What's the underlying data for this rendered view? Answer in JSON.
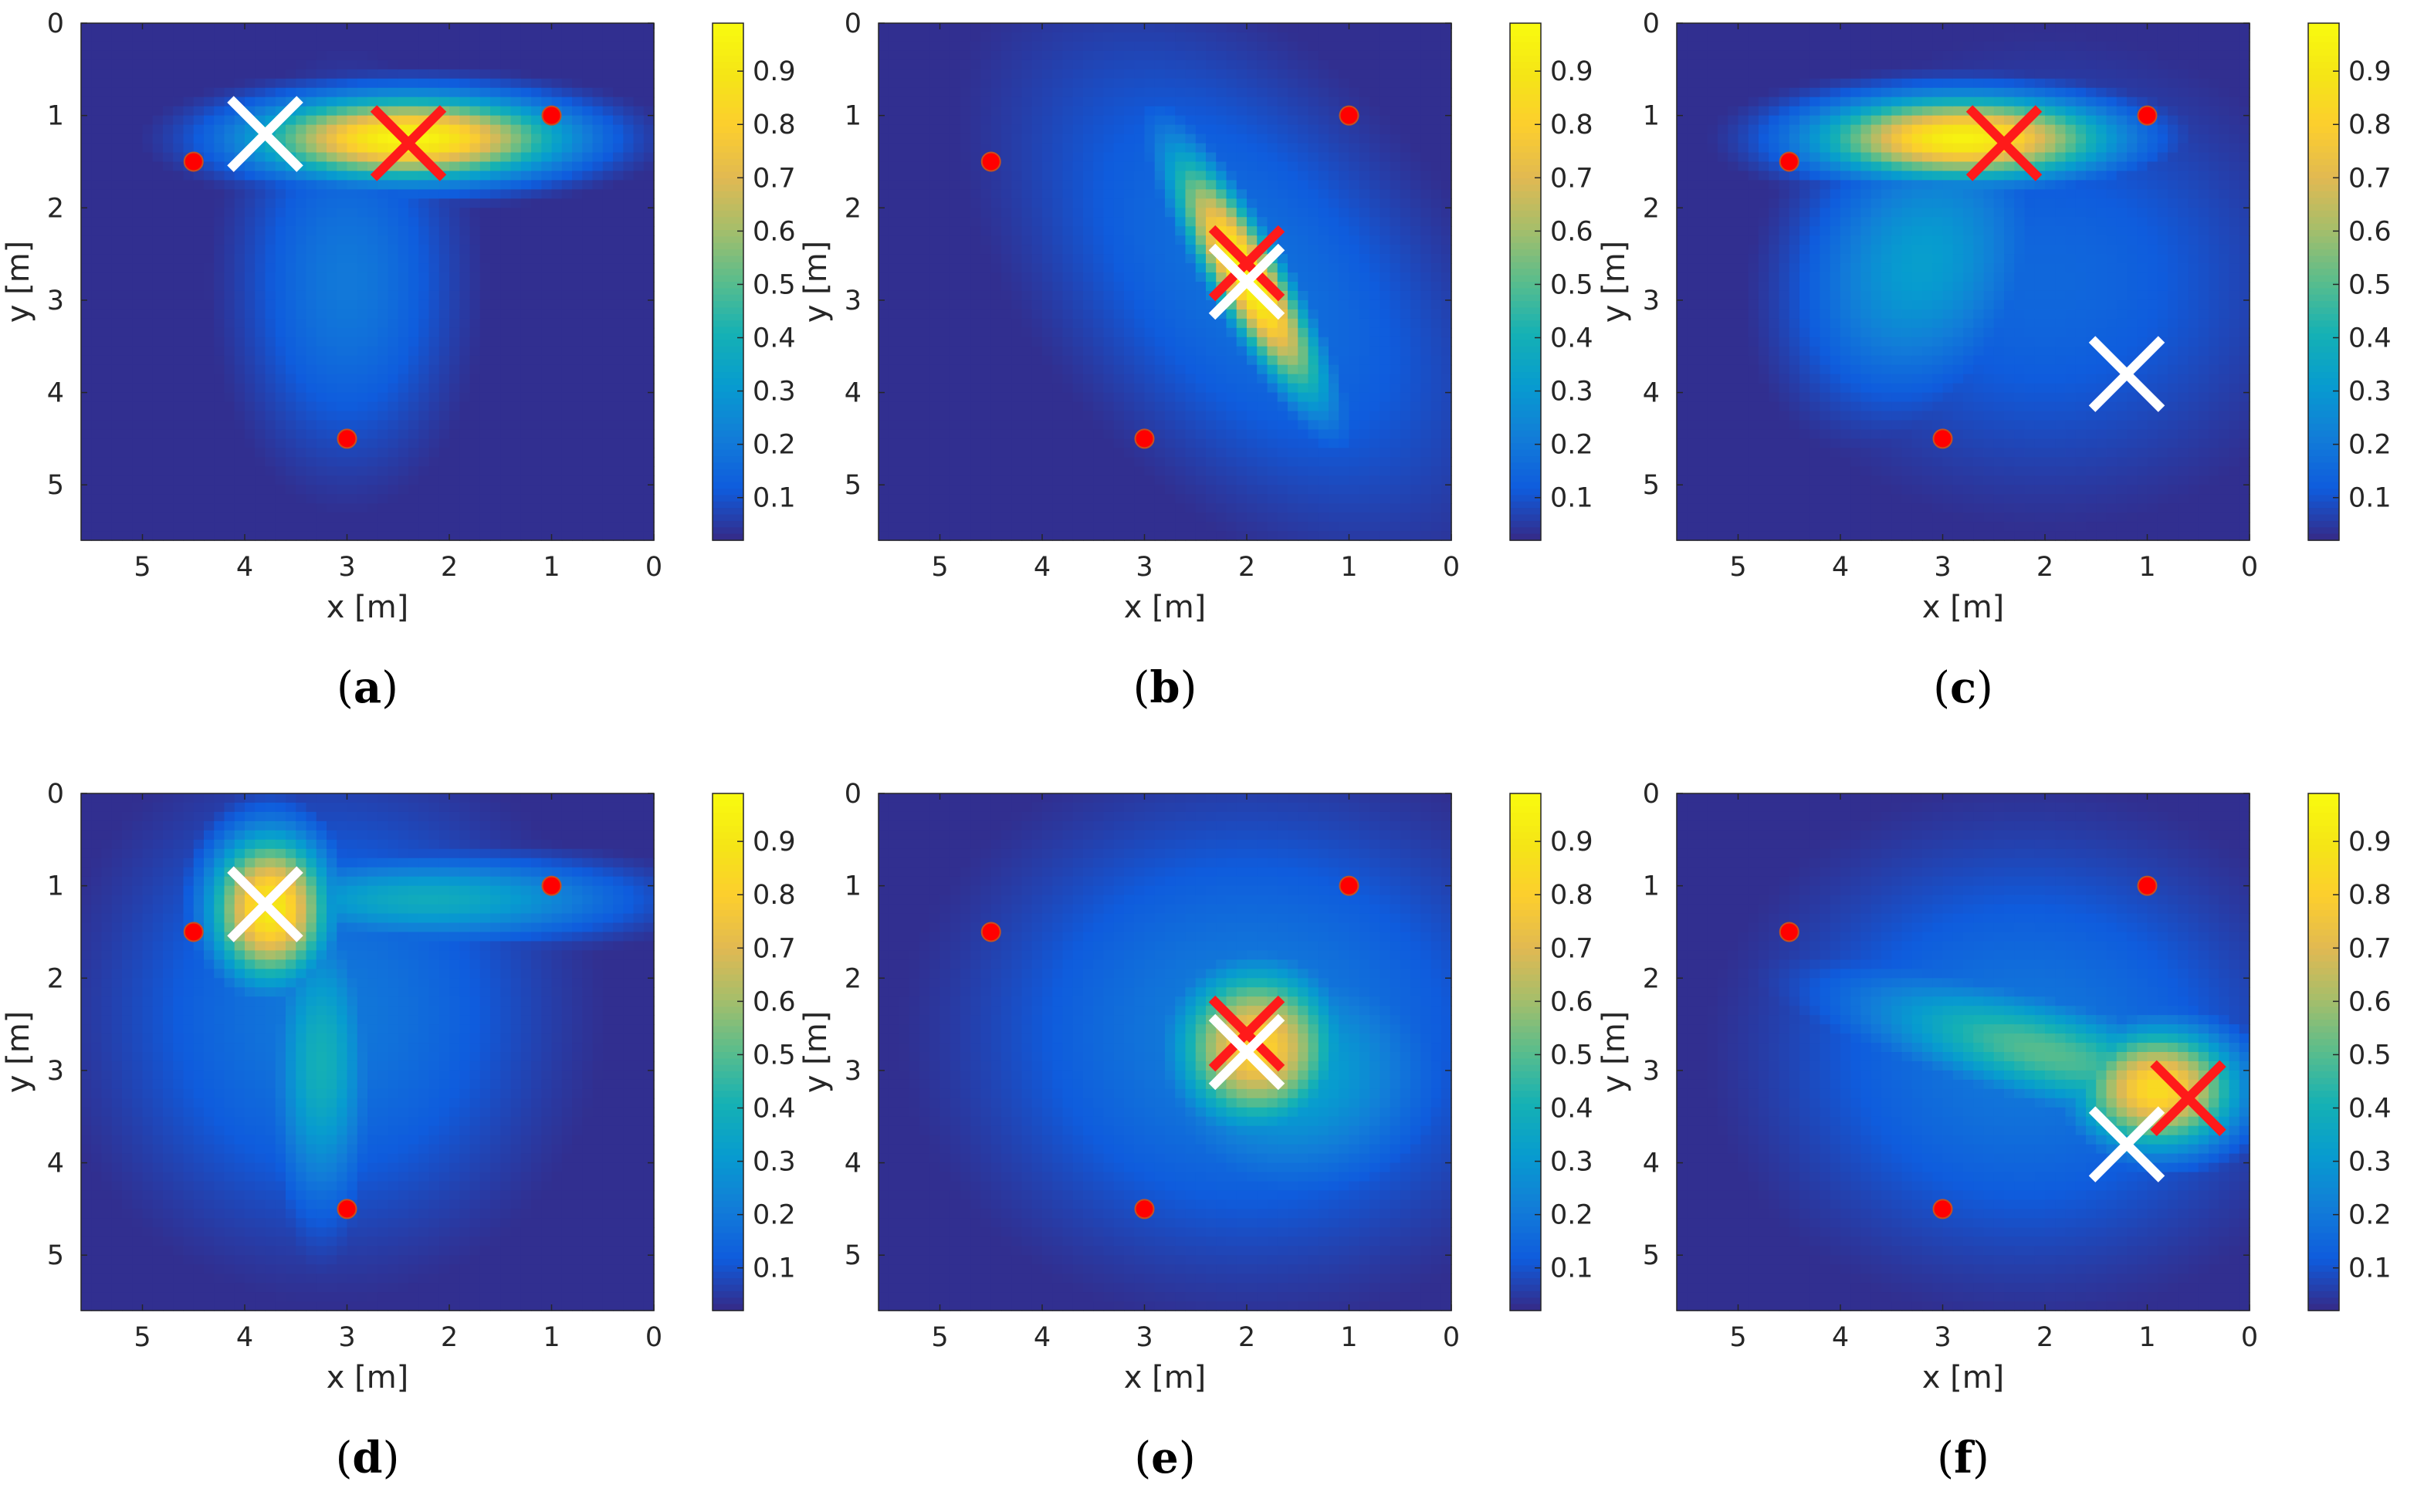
{
  "figure": {
    "colormap": "parula",
    "colors": {
      "anchor": "#ff0000",
      "anchor_edge": "#c8501e",
      "estimate_cross": "#ff1a1a",
      "true_cross": "#ffffff",
      "axis": "#262626"
    }
  },
  "chart_data": [
    {
      "panel": "a",
      "type": "heatmap",
      "caption": "(a)",
      "xlabel": "x [m]",
      "ylabel": "y [m]",
      "xlim": [
        5.6,
        0
      ],
      "ylim": [
        0,
        5.6
      ],
      "xticks": [
        "5",
        "4",
        "3",
        "2",
        "1",
        "0"
      ],
      "yticks": [
        "0",
        "1",
        "2",
        "3",
        "4",
        "5"
      ],
      "colorbar_ticks": [
        "0.1",
        "0.2",
        "0.3",
        "0.4",
        "0.5",
        "0.6",
        "0.7",
        "0.8",
        "0.9"
      ],
      "colorbar_range": [
        0.02,
        0.99
      ],
      "anchors": [
        [
          4.5,
          1.5
        ],
        [
          1.0,
          1.0
        ],
        [
          3.0,
          4.5
        ]
      ],
      "estimate": [
        2.4,
        1.3
      ],
      "true_position": [
        3.8,
        1.2
      ],
      "blobs": [
        {
          "cx": 2.4,
          "cy": 1.25,
          "sx": 1.0,
          "sy": 0.3,
          "rho": 0.0,
          "amp": 0.97
        },
        {
          "cx": 3.0,
          "cy": 2.8,
          "sx": 0.7,
          "sy": 1.3,
          "rho": 0.0,
          "amp": 0.2
        }
      ]
    },
    {
      "panel": "b",
      "type": "heatmap",
      "caption": "(b)",
      "xlabel": "x [m]",
      "ylabel": "y [m]",
      "xlim": [
        5.6,
        0
      ],
      "ylim": [
        0,
        5.6
      ],
      "xticks": [
        "5",
        "4",
        "3",
        "2",
        "1",
        "0"
      ],
      "yticks": [
        "0",
        "1",
        "2",
        "3",
        "4",
        "5"
      ],
      "colorbar_ticks": [
        "0.1",
        "0.2",
        "0.3",
        "0.4",
        "0.5",
        "0.6",
        "0.7",
        "0.8",
        "0.9"
      ],
      "colorbar_range": [
        0.02,
        0.99
      ],
      "anchors": [
        [
          4.5,
          1.5
        ],
        [
          1.0,
          1.0
        ],
        [
          3.0,
          4.5
        ]
      ],
      "estimate": [
        2.0,
        2.6
      ],
      "true_position": [
        2.0,
        2.8
      ],
      "blobs": [
        {
          "cx": 2.0,
          "cy": 2.75,
          "sx": 0.5,
          "sy": 0.9,
          "rho": -0.85,
          "amp": 0.97
        },
        {
          "cx": 2.0,
          "cy": 2.75,
          "sx": 1.5,
          "sy": 1.8,
          "rho": -0.5,
          "amp": 0.18
        }
      ]
    },
    {
      "panel": "c",
      "type": "heatmap",
      "caption": "(c)",
      "xlabel": "x [m]",
      "ylabel": "y [m]",
      "xlim": [
        5.6,
        0
      ],
      "ylim": [
        0,
        5.6
      ],
      "xticks": [
        "5",
        "4",
        "3",
        "2",
        "1",
        "0"
      ],
      "yticks": [
        "0",
        "1",
        "2",
        "3",
        "4",
        "5"
      ],
      "colorbar_ticks": [
        "0.1",
        "0.2",
        "0.3",
        "0.4",
        "0.5",
        "0.6",
        "0.7",
        "0.8",
        "0.9"
      ],
      "colorbar_range": [
        0.02,
        0.99
      ],
      "anchors": [
        [
          4.5,
          1.5
        ],
        [
          1.0,
          1.0
        ],
        [
          3.0,
          4.5
        ]
      ],
      "estimate": [
        2.4,
        1.3
      ],
      "true_position": [
        1.2,
        3.8
      ],
      "blobs": [
        {
          "cx": 2.8,
          "cy": 1.25,
          "sx": 0.95,
          "sy": 0.3,
          "rho": 0.0,
          "amp": 0.95
        },
        {
          "cx": 3.2,
          "cy": 2.6,
          "sx": 0.8,
          "sy": 1.0,
          "rho": 0.2,
          "amp": 0.32
        },
        {
          "cx": 2.0,
          "cy": 2.8,
          "sx": 1.6,
          "sy": 1.5,
          "rho": 0.0,
          "amp": 0.15
        }
      ]
    },
    {
      "panel": "d",
      "type": "heatmap",
      "caption": "(d)",
      "xlabel": "x [m]",
      "ylabel": "y [m]",
      "xlim": [
        5.6,
        0
      ],
      "ylim": [
        0,
        5.6
      ],
      "xticks": [
        "5",
        "4",
        "3",
        "2",
        "1",
        "0"
      ],
      "yticks": [
        "0",
        "1",
        "2",
        "3",
        "4",
        "5"
      ],
      "colorbar_ticks": [
        "0.1",
        "0.2",
        "0.3",
        "0.4",
        "0.5",
        "0.6",
        "0.7",
        "0.8",
        "0.9"
      ],
      "colorbar_range": [
        0.02,
        0.99
      ],
      "anchors": [
        [
          4.5,
          1.5
        ],
        [
          1.0,
          1.0
        ],
        [
          3.0,
          4.5
        ]
      ],
      "estimate": [
        3.8,
        1.2
      ],
      "true_position": [
        3.8,
        1.2
      ],
      "blobs": [
        {
          "cx": 3.75,
          "cy": 1.25,
          "sx": 0.4,
          "sy": 0.55,
          "rho": 0.0,
          "amp": 0.92
        },
        {
          "cx": 2.2,
          "cy": 1.15,
          "sx": 1.3,
          "sy": 0.3,
          "rho": 0.0,
          "amp": 0.38
        },
        {
          "cx": 3.25,
          "cy": 2.9,
          "sx": 0.35,
          "sy": 1.1,
          "rho": 0.0,
          "amp": 0.4
        },
        {
          "cx": 3.2,
          "cy": 2.4,
          "sx": 1.4,
          "sy": 1.6,
          "rho": 0.0,
          "amp": 0.2
        }
      ]
    },
    {
      "panel": "e",
      "type": "heatmap",
      "caption": "(e)",
      "xlabel": "x [m]",
      "ylabel": "y [m]",
      "xlim": [
        5.6,
        0
      ],
      "ylim": [
        0,
        5.6
      ],
      "xticks": [
        "5",
        "4",
        "3",
        "2",
        "1",
        "0"
      ],
      "yticks": [
        "0",
        "1",
        "2",
        "3",
        "4",
        "5"
      ],
      "colorbar_ticks": [
        "0.1",
        "0.2",
        "0.3",
        "0.4",
        "0.5",
        "0.6",
        "0.7",
        "0.8",
        "0.9"
      ],
      "colorbar_range": [
        0.02,
        0.99
      ],
      "anchors": [
        [
          4.5,
          1.5
        ],
        [
          1.0,
          1.0
        ],
        [
          3.0,
          4.5
        ]
      ],
      "estimate": [
        2.0,
        2.6
      ],
      "true_position": [
        2.0,
        2.8
      ],
      "blobs": [
        {
          "cx": 1.9,
          "cy": 2.75,
          "sx": 0.55,
          "sy": 0.6,
          "rho": 0.0,
          "amp": 0.82
        },
        {
          "cx": 1.6,
          "cy": 3.0,
          "sx": 1.0,
          "sy": 0.9,
          "rho": 0.0,
          "amp": 0.35
        },
        {
          "cx": 2.0,
          "cy": 2.6,
          "sx": 1.7,
          "sy": 1.6,
          "rho": 0.0,
          "amp": 0.22
        }
      ]
    },
    {
      "panel": "f",
      "type": "heatmap",
      "caption": "(f)",
      "xlabel": "x [m]",
      "ylabel": "y [m]",
      "xlim": [
        5.6,
        0
      ],
      "ylim": [
        0,
        5.6
      ],
      "xticks": [
        "5",
        "4",
        "3",
        "2",
        "1",
        "0"
      ],
      "yticks": [
        "0",
        "1",
        "2",
        "3",
        "4",
        "5"
      ],
      "colorbar_ticks": [
        "0.1",
        "0.2",
        "0.3",
        "0.4",
        "0.5",
        "0.6",
        "0.7",
        "0.8",
        "0.9"
      ],
      "colorbar_range": [
        0.02,
        0.99
      ],
      "anchors": [
        [
          4.5,
          1.5
        ],
        [
          1.0,
          1.0
        ],
        [
          3.0,
          4.5
        ]
      ],
      "estimate": [
        0.6,
        3.3
      ],
      "true_position": [
        1.2,
        3.8
      ],
      "blobs": [
        {
          "cx": 0.9,
          "cy": 3.2,
          "sx": 0.55,
          "sy": 0.45,
          "rho": 0.0,
          "amp": 0.85
        },
        {
          "cx": 2.0,
          "cy": 2.8,
          "sx": 1.3,
          "sy": 0.55,
          "rho": -0.65,
          "amp": 0.5
        },
        {
          "cx": 2.2,
          "cy": 2.8,
          "sx": 1.6,
          "sy": 1.5,
          "rho": 0.0,
          "amp": 0.2
        }
      ]
    }
  ]
}
